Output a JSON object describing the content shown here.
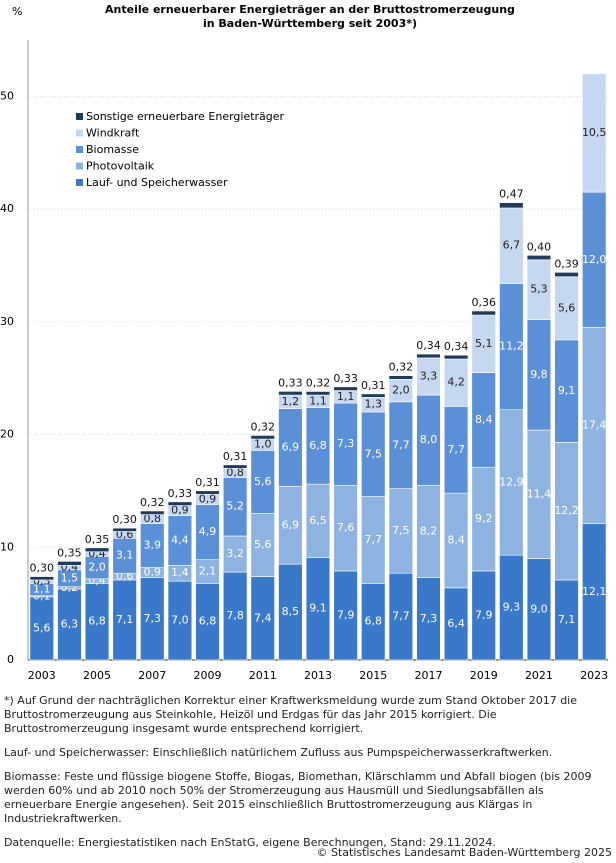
{
  "chart_data": {
    "type": "stacked-bar",
    "title": [
      "Anteile erneuerbarer Energieträger an der Bruttostromerzeugung",
      "in Baden-Württemberg seit 2003*)"
    ],
    "y_label": "%",
    "categories": [
      "2003",
      null,
      "2005",
      null,
      "2007",
      null,
      "2009",
      null,
      "2011",
      null,
      "2013",
      null,
      "2015",
      null,
      "2017",
      null,
      "2019",
      null,
      "2021",
      null,
      "2023"
    ],
    "ylim": [
      0,
      55
    ],
    "yticks": [
      0,
      10,
      20,
      30,
      40,
      50
    ],
    "grid": true,
    "legend_position": "upper-left",
    "series": [
      {
        "name": "Lauf- und Speicherwasser",
        "color": "#3a78c9",
        "values": [
          5.6,
          6.3,
          6.8,
          7.1,
          7.3,
          7.0,
          6.8,
          7.8,
          7.4,
          8.5,
          9.1,
          7.9,
          6.8,
          7.7,
          7.3,
          6.4,
          7.9,
          9.3,
          9.0,
          7.1,
          12.1
        ],
        "value_labels": [
          "5,6",
          "6,3",
          "6,8",
          "7,1",
          "7,3",
          "7,0",
          "6,8",
          "7,8",
          "7,4",
          "8,5",
          "9,1",
          "7,9",
          "6,8",
          "7,7",
          "7,3",
          "6,4",
          "7,9",
          "9,3",
          "9,0",
          "7,1",
          "12,1"
        ]
      },
      {
        "name": "Photovoltaik",
        "color": "#8fb3e0",
        "values": [
          0.1,
          0.2,
          0.4,
          0.6,
          0.9,
          1.4,
          2.1,
          3.2,
          5.6,
          6.9,
          6.5,
          7.6,
          7.7,
          7.5,
          8.2,
          8.4,
          9.2,
          12.9,
          11.4,
          12.2,
          17.4
        ],
        "value_labels": [
          "0,1",
          "0,2",
          "0,4",
          "0,6",
          "0,9",
          "1,4",
          "2,1",
          "3,2",
          "5,6",
          "6,9",
          "6,5",
          "7,6",
          "7,7",
          "7,5",
          "8,2",
          "8,4",
          "9,2",
          "12,9",
          "11,4",
          "12,2",
          "17,4"
        ]
      },
      {
        "name": "Biomasse",
        "color": "#5b8fd6",
        "values": [
          1.1,
          1.5,
          2.0,
          3.1,
          3.9,
          4.4,
          4.9,
          5.2,
          5.6,
          6.9,
          6.8,
          7.3,
          7.5,
          7.7,
          8.0,
          7.7,
          8.4,
          11.2,
          9.8,
          9.1,
          12.0
        ],
        "value_labels": [
          "1,1",
          "1,5",
          "2,0",
          "3,1",
          "3,9",
          "4,4",
          "4,9",
          "5,2",
          "5,6",
          "6,9",
          "6,8",
          "7,3",
          "7,5",
          "7,7",
          "8,0",
          "7,7",
          "8,4",
          "11,2",
          "9,8",
          "9,1",
          "12,0"
        ]
      },
      {
        "name": "Windkraft",
        "color": "#c6d8f0",
        "values": [
          0.3,
          0.4,
          0.4,
          0.6,
          0.8,
          0.9,
          0.9,
          0.8,
          1.0,
          1.2,
          1.1,
          1.1,
          1.3,
          2.0,
          3.3,
          4.2,
          5.1,
          6.7,
          5.3,
          5.6,
          10.5
        ],
        "value_labels": [
          "0,3",
          "0,4",
          "0,4",
          "0,6",
          "0,8",
          "0,9",
          "0,9",
          "0,8",
          "1,0",
          "1,2",
          "1,1",
          "1,1",
          "1,3",
          "2,0",
          "3,3",
          "4,2",
          "5,1",
          "6,7",
          "5,3",
          "5,6",
          "10,5"
        ]
      },
      {
        "name": "Sonstige erneuerbare Energieträger",
        "color": "#1f3a5a",
        "values": [
          0.3,
          0.35,
          0.35,
          0.3,
          0.32,
          0.33,
          0.31,
          0.31,
          0.32,
          0.33,
          0.32,
          0.33,
          0.31,
          0.32,
          0.34,
          0.34,
          0.36,
          0.47,
          0.4,
          0.39,
          null
        ],
        "value_labels": [
          "0,30",
          "0,35",
          "0,35",
          "0,30",
          "0,32",
          "0,33",
          "0,31",
          "0,31",
          "0,32",
          "0,33",
          "0,32",
          "0,33",
          "0,31",
          "0,32",
          "0,34",
          "0,34",
          "0,36",
          "0,47",
          "0,40",
          "0,39",
          null
        ]
      }
    ]
  },
  "notes": [
    "*) Auf Grund der nachträglichen Korrektur einer Kraftwerksmeldung wurde zum Stand Oktober 2017 die Bruttostromerzeugung aus Steinkohle, Heizöl und Erdgas für das Jahr 2015 korrigiert. Die Bruttostromerzeugung insgesamt wurde entsprechend korrigiert.",
    "Lauf- und Speicherwasser: Einschließlich natürlichem Zufluss aus Pumpspeicherwasserkraftwerken.",
    "Biomasse: Feste und flüssige biogene Stoffe, Biogas, Biomethan, Klärschlamm und Abfall biogen (bis 2009 werden 60% und ab 2010 noch 50% der Stromerzeugung aus Hausmüll und Siedlungsabfällen als erneuerbare Energie angesehen). Seit 2015 einschließlich Bruttostromerzeugung aus Klärgas in Industriekraftwerken.",
    "Datenquelle: Energiestatistiken nach EnStatG, eigene Berechnungen, Stand: 29.11.2024."
  ],
  "copyright": "© Statistisches Landesamt Baden-Württemberg 2025"
}
